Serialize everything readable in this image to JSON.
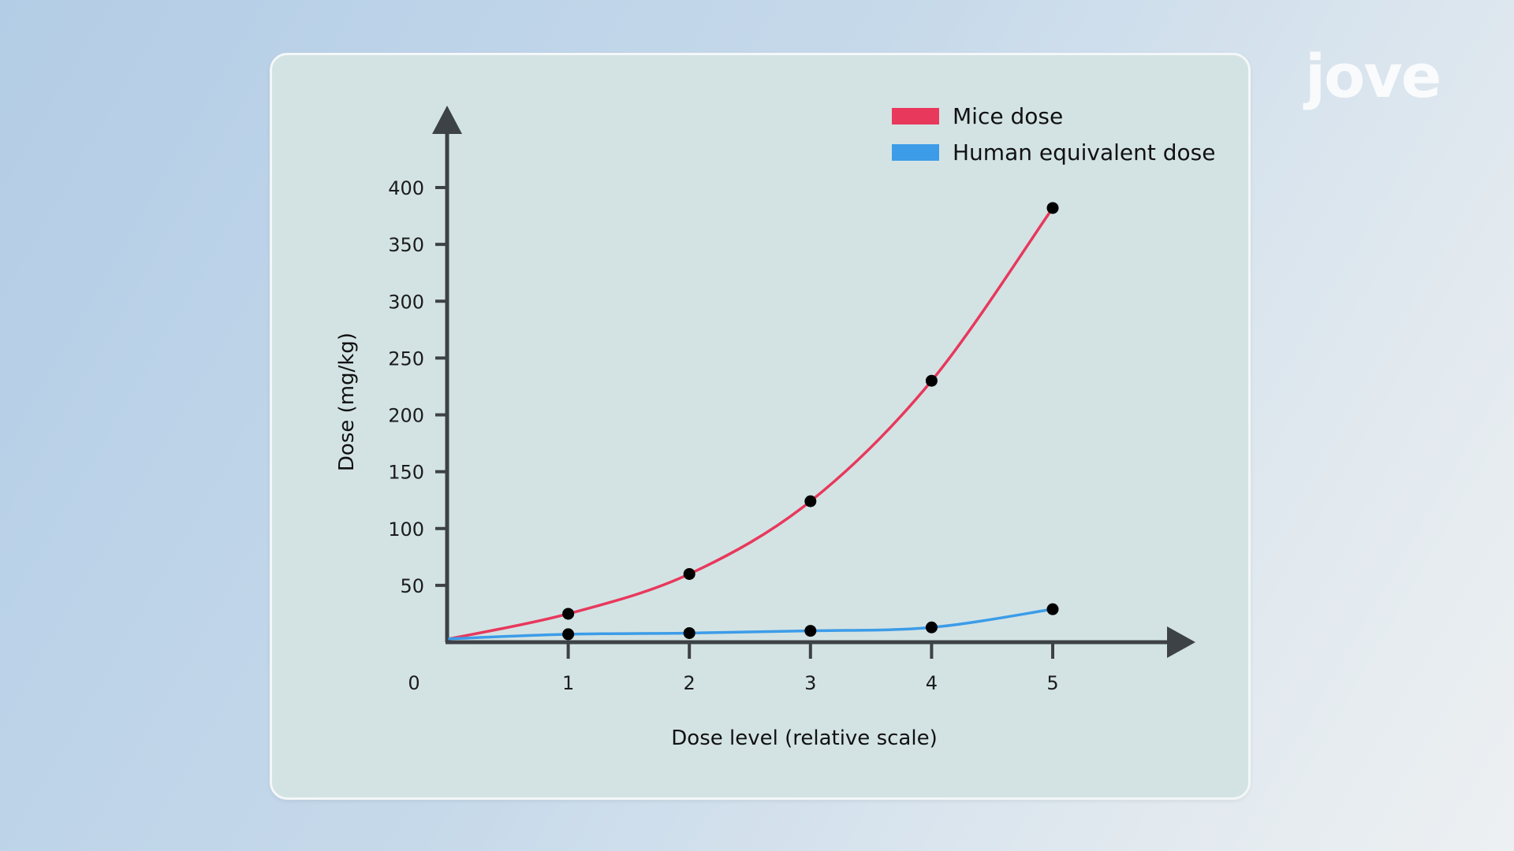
{
  "brand": {
    "logo_text": "jove"
  },
  "colors": {
    "mice": "#e8385c",
    "human": "#3c9ce8",
    "axis": "#3d4247",
    "marker": "#000000",
    "card_bg": "#d3e3e4"
  },
  "chart_data": {
    "type": "line",
    "xlabel": "Dose level (relative scale)",
    "ylabel": "Dose (mg/kg)",
    "origin_label": "0",
    "x_ticks": [
      1,
      2,
      3,
      4,
      5
    ],
    "y_ticks": [
      50,
      100,
      150,
      200,
      250,
      300,
      350,
      400
    ],
    "xlim": [
      0,
      5.75
    ],
    "ylim": [
      0,
      420
    ],
    "legend_position": "top-right",
    "curve_start": {
      "x": 0,
      "y": 3
    },
    "series": [
      {
        "name": "Mice dose",
        "color": "#e8385c",
        "x": [
          1,
          2,
          3,
          4,
          5
        ],
        "y": [
          25,
          60,
          124,
          230,
          382
        ]
      },
      {
        "name": "Human equivalent dose",
        "color": "#3c9ce8",
        "x": [
          1,
          2,
          3,
          4,
          5
        ],
        "y": [
          7,
          8,
          10,
          13,
          29
        ]
      }
    ]
  }
}
